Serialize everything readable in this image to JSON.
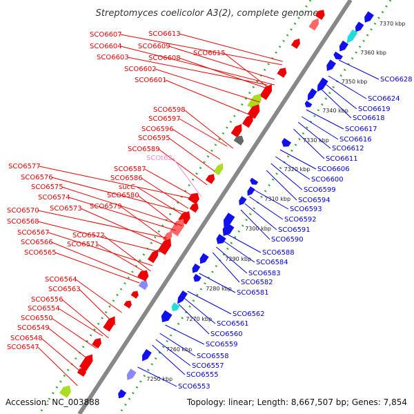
{
  "title": "Streptomyces coelicolor A3(2), complete genome",
  "footer": {
    "accession": "Accession: NC_003888",
    "topology": "Topology: linear; Length: 8,667,507 bp; Genes: 7,854"
  },
  "colors": {
    "forward_label": "#ee0000",
    "reverse_label": "#0000dd",
    "rna_label": "#ff88cc",
    "forward_gene": "#ee0000",
    "reverse_gene": "#1111ee",
    "backbone": "#888888",
    "dots": "#33aa33"
  },
  "kbp_ticks": [
    "7250 kbp",
    "7260 kbp",
    "7270 kbp",
    "7280 kbp",
    "7290 kbp",
    "7300 kbp",
    "7310 kbp",
    "7320 kbp",
    "7330 kbp",
    "7340 kbp",
    "7350 kbp",
    "7360 kbp",
    "7370 kbp"
  ],
  "left_labels": [
    {
      "text": "SCO6613",
      "strand": "forward"
    },
    {
      "text": "SCO6607",
      "strand": "forward"
    },
    {
      "text": "SCO6609",
      "strand": "forward"
    },
    {
      "text": "SCO6615",
      "strand": "forward"
    },
    {
      "text": "SCO6604",
      "strand": "forward"
    },
    {
      "text": "SCO6603",
      "strand": "forward"
    },
    {
      "text": "SCO6608",
      "strand": "forward"
    },
    {
      "text": "SCO6602",
      "strand": "forward"
    },
    {
      "text": "SCO6601",
      "strand": "forward"
    },
    {
      "text": "SCO6598",
      "strand": "forward"
    },
    {
      "text": "SCO6597",
      "strand": "forward"
    },
    {
      "text": "SCO6596",
      "strand": "forward"
    },
    {
      "text": "SCO6595",
      "strand": "forward"
    },
    {
      "text": "SCO6589",
      "strand": "forward"
    },
    {
      "text": "SCOt62",
      "strand": "rna"
    },
    {
      "text": "SCO6587",
      "strand": "forward"
    },
    {
      "text": "SCO6586",
      "strand": "forward"
    },
    {
      "text": "SCO6577",
      "strand": "forward"
    },
    {
      "text": "SCO6576",
      "strand": "forward"
    },
    {
      "text": "SCO6575",
      "strand": "forward"
    },
    {
      "text": "sucC",
      "strand": "forward"
    },
    {
      "text": "SCO6580",
      "strand": "forward"
    },
    {
      "text": "SCO6574",
      "strand": "forward"
    },
    {
      "text": "SCO6579",
      "strand": "forward"
    },
    {
      "text": "SCO6573",
      "strand": "forward"
    },
    {
      "text": "SCO6570",
      "strand": "forward"
    },
    {
      "text": "SCO6568",
      "strand": "forward"
    },
    {
      "text": "SCO6567",
      "strand": "forward"
    },
    {
      "text": "SCO6572",
      "strand": "forward"
    },
    {
      "text": "SCO6566",
      "strand": "forward"
    },
    {
      "text": "SCO6571",
      "strand": "forward"
    },
    {
      "text": "SCO6565",
      "strand": "forward"
    },
    {
      "text": "SCO6564",
      "strand": "forward"
    },
    {
      "text": "SCO6563",
      "strand": "forward"
    },
    {
      "text": "SCO6556",
      "strand": "forward"
    },
    {
      "text": "SCO6554",
      "strand": "forward"
    },
    {
      "text": "SCO6550",
      "strand": "forward"
    },
    {
      "text": "SCO6549",
      "strand": "forward"
    },
    {
      "text": "SCO6548",
      "strand": "forward"
    },
    {
      "text": "SCO6547",
      "strand": "forward"
    }
  ],
  "right_labels": [
    {
      "text": "SCO6628",
      "strand": "reverse"
    },
    {
      "text": "SCO6624",
      "strand": "reverse"
    },
    {
      "text": "SCO6619",
      "strand": "reverse"
    },
    {
      "text": "SCO6618",
      "strand": "reverse"
    },
    {
      "text": "SCO6617",
      "strand": "reverse"
    },
    {
      "text": "SCO6616",
      "strand": "reverse"
    },
    {
      "text": "SCO6612",
      "strand": "reverse"
    },
    {
      "text": "SCO6611",
      "strand": "reverse"
    },
    {
      "text": "SCO6606",
      "strand": "reverse"
    },
    {
      "text": "SCO6600",
      "strand": "reverse"
    },
    {
      "text": "SCO6599",
      "strand": "reverse"
    },
    {
      "text": "SCO6594",
      "strand": "reverse"
    },
    {
      "text": "SCO6593",
      "strand": "reverse"
    },
    {
      "text": "SCO6592",
      "strand": "reverse"
    },
    {
      "text": "SCO6591",
      "strand": "reverse"
    },
    {
      "text": "SCO6590",
      "strand": "reverse"
    },
    {
      "text": "SCO6588",
      "strand": "reverse"
    },
    {
      "text": "SCO6584",
      "strand": "reverse"
    },
    {
      "text": "SCO6583",
      "strand": "reverse"
    },
    {
      "text": "SCO6582",
      "strand": "reverse"
    },
    {
      "text": "SCO6581",
      "strand": "reverse"
    },
    {
      "text": "SCO6562",
      "strand": "reverse"
    },
    {
      "text": "SCO6561",
      "strand": "reverse"
    },
    {
      "text": "SCO6560",
      "strand": "reverse"
    },
    {
      "text": "SCO6559",
      "strand": "reverse"
    },
    {
      "text": "SCO6558",
      "strand": "reverse"
    },
    {
      "text": "SCO6557",
      "strand": "reverse"
    },
    {
      "text": "SCO6555",
      "strand": "reverse"
    },
    {
      "text": "SCO6553",
      "strand": "reverse"
    }
  ],
  "gene_palette": [
    "#ee0000",
    "#1111ee",
    "#22dddd",
    "#aaaaaa",
    "#666666",
    "#ff8800",
    "#8888ff",
    "#ff6666",
    "#aadd22",
    "#ff66cc"
  ]
}
